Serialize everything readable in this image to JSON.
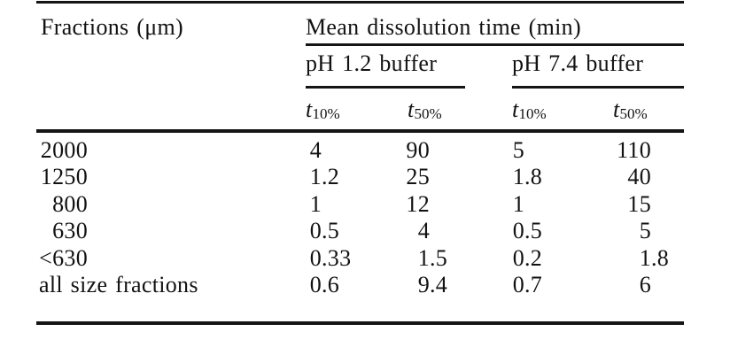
{
  "page": {
    "background_color": "#ffffff",
    "text_color": "#121212",
    "rule_color": "#151515"
  },
  "table": {
    "column0_header": "Fractions (μm)",
    "span_header": "Mean dissolution time (min)",
    "groups": [
      {
        "label": "pH 1.2 buffer"
      },
      {
        "label": "pH 7.4 buffer"
      }
    ],
    "subheaders": {
      "symbol": "t",
      "subs": [
        "10%",
        "50%",
        "10%",
        "50%"
      ]
    },
    "rows": [
      {
        "fraction": "2000",
        "values": [
          "4",
          "90",
          "5",
          "110"
        ]
      },
      {
        "fraction": "1250",
        "values": [
          "1.2",
          "25",
          "1.8",
          "40"
        ]
      },
      {
        "fraction": "800",
        "values": [
          "1",
          "12",
          "1",
          "15"
        ]
      },
      {
        "fraction": "630",
        "values": [
          "0.5",
          "4",
          "0.5",
          "5"
        ]
      },
      {
        "fraction": "<630",
        "values": [
          "0.33",
          "1.5",
          "0.2",
          "1.8"
        ]
      },
      {
        "fraction": "all size fractions",
        "values": [
          "0.6",
          "9.4",
          "0.7",
          "6"
        ]
      }
    ]
  }
}
